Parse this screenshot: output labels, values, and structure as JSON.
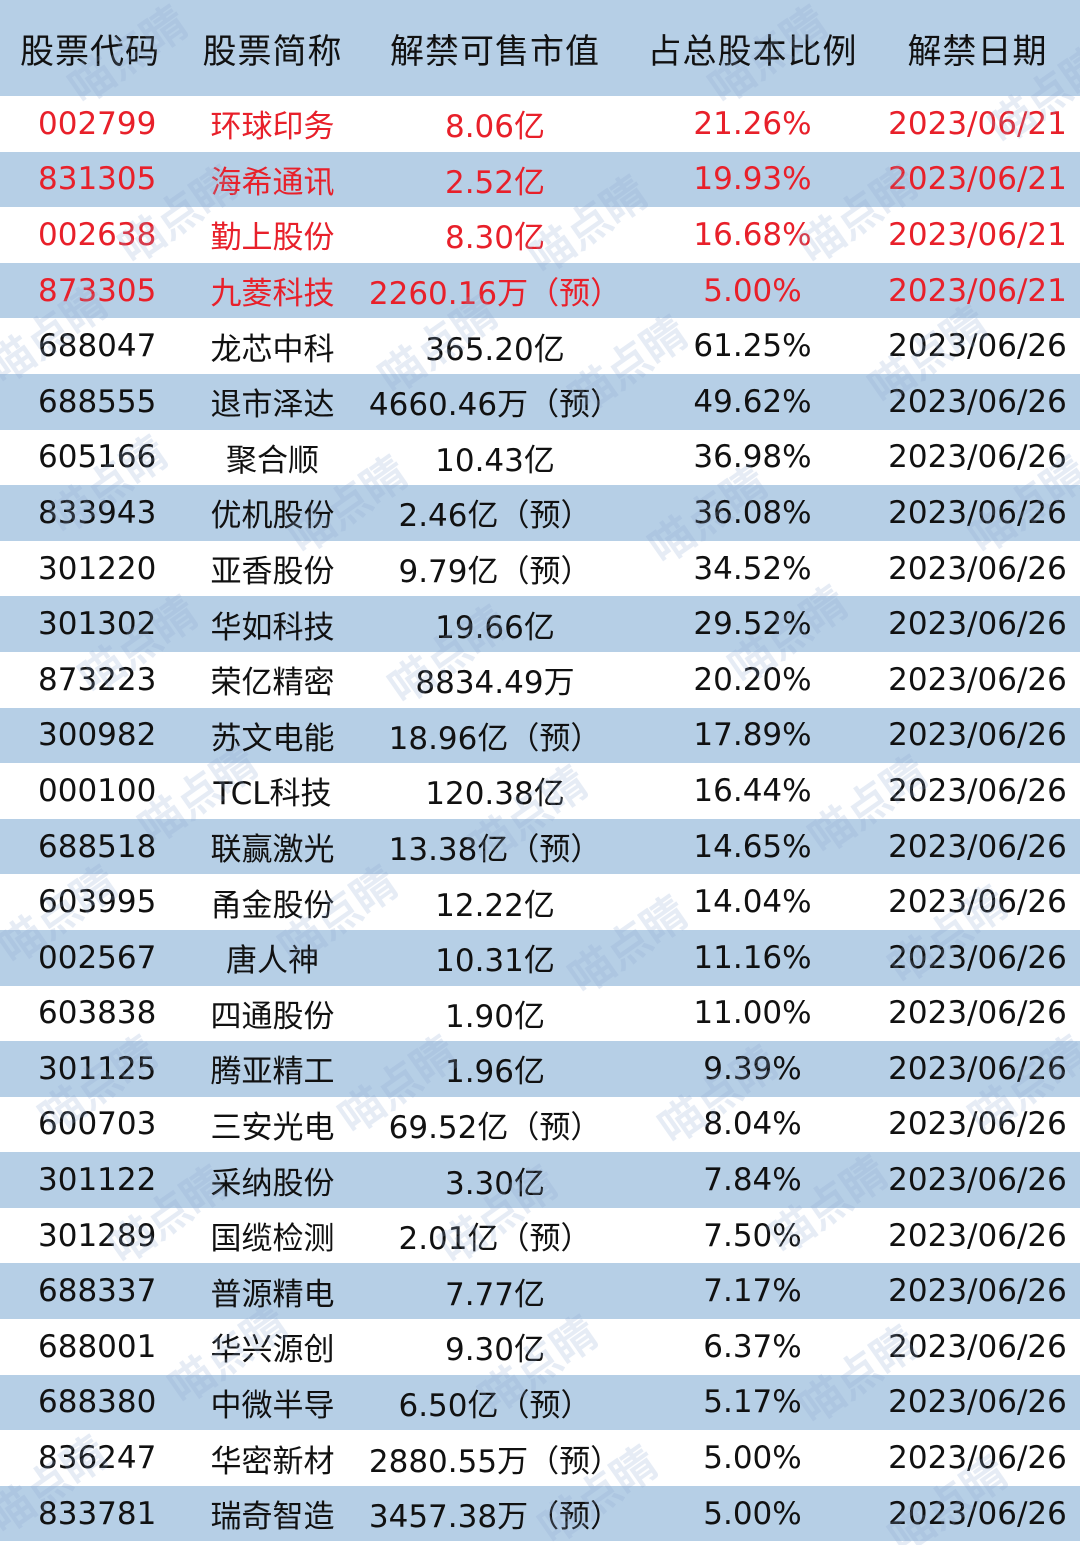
{
  "colors": {
    "header_bg": "#b6cfe6",
    "stripe_bg": "#b6cfe6",
    "highlight_text": "#e8202a",
    "normal_text": "#111111"
  },
  "watermark": "喵点睛",
  "headers": [
    "股票代码",
    "股票简称",
    "解禁可售市值",
    "占总股本比例",
    "解禁日期"
  ],
  "rows": [
    {
      "code": "002799",
      "name": "环球印务",
      "value": "8.06亿",
      "ratio": "21.26%",
      "date": "2023/06/21",
      "highlight": true
    },
    {
      "code": "831305",
      "name": "海希通讯",
      "value": "2.52亿",
      "ratio": "19.93%",
      "date": "2023/06/21",
      "highlight": true
    },
    {
      "code": "002638",
      "name": "勤上股份",
      "value": "8.30亿",
      "ratio": "16.68%",
      "date": "2023/06/21",
      "highlight": true
    },
    {
      "code": "873305",
      "name": "九菱科技",
      "value": "2260.16万（预）",
      "ratio": "5.00%",
      "date": "2023/06/21",
      "highlight": true
    },
    {
      "code": "688047",
      "name": "龙芯中科",
      "value": "365.20亿",
      "ratio": "61.25%",
      "date": "2023/06/26",
      "highlight": false
    },
    {
      "code": "688555",
      "name": "退市泽达",
      "value": "4660.46万（预）",
      "ratio": "49.62%",
      "date": "2023/06/26",
      "highlight": false
    },
    {
      "code": "605166",
      "name": "聚合顺",
      "value": "10.43亿",
      "ratio": "36.98%",
      "date": "2023/06/26",
      "highlight": false
    },
    {
      "code": "833943",
      "name": "优机股份",
      "value": "2.46亿（预）",
      "ratio": "36.08%",
      "date": "2023/06/26",
      "highlight": false
    },
    {
      "code": "301220",
      "name": "亚香股份",
      "value": "9.79亿（预）",
      "ratio": "34.52%",
      "date": "2023/06/26",
      "highlight": false
    },
    {
      "code": "301302",
      "name": "华如科技",
      "value": "19.66亿",
      "ratio": "29.52%",
      "date": "2023/06/26",
      "highlight": false
    },
    {
      "code": "873223",
      "name": "荣亿精密",
      "value": "8834.49万",
      "ratio": "20.20%",
      "date": "2023/06/26",
      "highlight": false
    },
    {
      "code": "300982",
      "name": "苏文电能",
      "value": "18.96亿（预）",
      "ratio": "17.89%",
      "date": "2023/06/26",
      "highlight": false
    },
    {
      "code": "000100",
      "name": "TCL科技",
      "value": "120.38亿",
      "ratio": "16.44%",
      "date": "2023/06/26",
      "highlight": false
    },
    {
      "code": "688518",
      "name": "联赢激光",
      "value": "13.38亿（预）",
      "ratio": "14.65%",
      "date": "2023/06/26",
      "highlight": false
    },
    {
      "code": "603995",
      "name": "甬金股份",
      "value": "12.22亿",
      "ratio": "14.04%",
      "date": "2023/06/26",
      "highlight": false
    },
    {
      "code": "002567",
      "name": "唐人神",
      "value": "10.31亿",
      "ratio": "11.16%",
      "date": "2023/06/26",
      "highlight": false
    },
    {
      "code": "603838",
      "name": "四通股份",
      "value": "1.90亿",
      "ratio": "11.00%",
      "date": "2023/06/26",
      "highlight": false
    },
    {
      "code": "301125",
      "name": "腾亚精工",
      "value": "1.96亿",
      "ratio": "9.39%",
      "date": "2023/06/26",
      "highlight": false
    },
    {
      "code": "600703",
      "name": "三安光电",
      "value": "69.52亿（预）",
      "ratio": "8.04%",
      "date": "2023/06/26",
      "highlight": false
    },
    {
      "code": "301122",
      "name": "采纳股份",
      "value": "3.30亿",
      "ratio": "7.84%",
      "date": "2023/06/26",
      "highlight": false
    },
    {
      "code": "301289",
      "name": "国缆检测",
      "value": "2.01亿（预）",
      "ratio": "7.50%",
      "date": "2023/06/26",
      "highlight": false
    },
    {
      "code": "688337",
      "name": "普源精电",
      "value": "7.77亿",
      "ratio": "7.17%",
      "date": "2023/06/26",
      "highlight": false
    },
    {
      "code": "688001",
      "name": "华兴源创",
      "value": "9.30亿",
      "ratio": "6.37%",
      "date": "2023/06/26",
      "highlight": false
    },
    {
      "code": "688380",
      "name": "中微半导",
      "value": "6.50亿（预）",
      "ratio": "5.17%",
      "date": "2023/06/26",
      "highlight": false
    },
    {
      "code": "836247",
      "name": "华密新材",
      "value": "2880.55万（预）",
      "ratio": "5.00%",
      "date": "2023/06/26",
      "highlight": false
    },
    {
      "code": "833781",
      "name": "瑞奇智造",
      "value": "3457.38万（预）",
      "ratio": "5.00%",
      "date": "2023/06/26",
      "highlight": false
    }
  ]
}
